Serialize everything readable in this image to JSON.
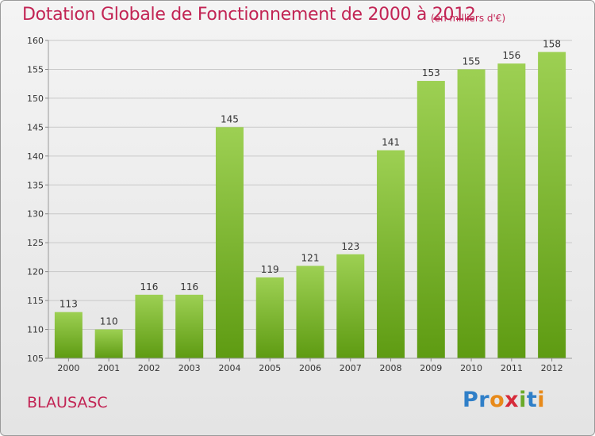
{
  "header": {
    "title": "Dotation Globale de Fonctionnement de 2000 à 2012",
    "unit": "(en milliers d'€)"
  },
  "footer": {
    "commune": "BLAUSASC",
    "brand": "Proxiti"
  },
  "colors": {
    "title": "#c22454",
    "bar_top": "#9dd053",
    "bar_bottom": "#5e9b12",
    "grid": "#c8c8c8"
  },
  "chart_data": {
    "type": "bar",
    "categories": [
      "2000",
      "2001",
      "2002",
      "2003",
      "2004",
      "2005",
      "2006",
      "2007",
      "2008",
      "2009",
      "2010",
      "2011",
      "2012"
    ],
    "values": [
      113,
      110,
      116,
      116,
      145,
      119,
      121,
      123,
      141,
      153,
      155,
      156,
      158
    ],
    "data_labels": [
      "113",
      "110",
      "116",
      "116",
      "145",
      "119",
      "121",
      "123",
      "141",
      "153",
      "155",
      "156",
      "158"
    ],
    "title": "Dotation Globale de Fonctionnement de 2000 à 2012",
    "xlabel": "",
    "ylabel": "",
    "ylim": [
      105,
      160
    ],
    "yticks": [
      105,
      110,
      115,
      120,
      125,
      130,
      135,
      140,
      145,
      150,
      155,
      160
    ],
    "grid": true,
    "legend": "none"
  }
}
